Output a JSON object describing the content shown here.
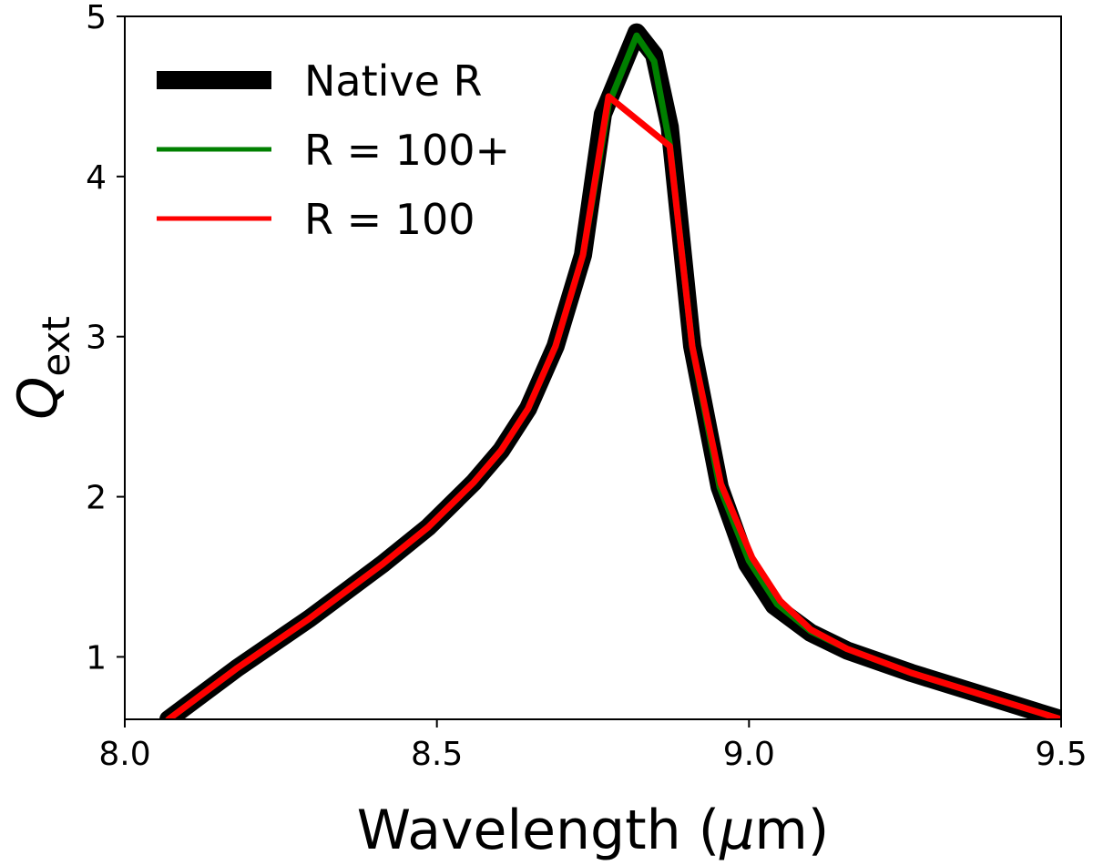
{
  "chart_data": {
    "type": "line",
    "title": "",
    "xlabel": "Wavelength (μm)",
    "xlabel_parts": {
      "prefix": "Wavelength (",
      "mu": "μ",
      "suffix": "m)"
    },
    "ylabel": "Q_ext",
    "ylabel_parts": {
      "main": "Q",
      "sub": "ext"
    },
    "xlim": [
      8.0,
      9.5
    ],
    "ylim": [
      0.61,
      5.0
    ],
    "xticks": [
      {
        "value": 8.0,
        "label": "8.0"
      },
      {
        "value": 8.5,
        "label": "8.5"
      },
      {
        "value": 9.0,
        "label": "9.0"
      },
      {
        "value": 9.5,
        "label": "9.5"
      }
    ],
    "yticks": [
      {
        "value": 1,
        "label": "1"
      },
      {
        "value": 2,
        "label": "2"
      },
      {
        "value": 3,
        "label": "3"
      },
      {
        "value": 4,
        "label": "4"
      },
      {
        "value": 5,
        "label": "5"
      }
    ],
    "grid": false,
    "legend_position": "top-left",
    "series": [
      {
        "name": "Native R",
        "color": "#000000",
        "width": "thick",
        "x": [
          8.07,
          8.18,
          8.296,
          8.413,
          8.486,
          8.559,
          8.603,
          8.646,
          8.69,
          8.734,
          8.766,
          8.82,
          8.848,
          8.873,
          8.909,
          8.953,
          8.997,
          9.04,
          9.099,
          9.157,
          9.26,
          9.376,
          9.5
        ],
        "y": [
          0.61,
          0.93,
          1.24,
          1.58,
          1.81,
          2.09,
          2.29,
          2.55,
          2.94,
          3.51,
          4.39,
          4.9,
          4.76,
          4.31,
          2.94,
          2.06,
          1.58,
          1.32,
          1.15,
          1.04,
          0.9,
          0.76,
          0.61
        ]
      },
      {
        "name": "R = 100+",
        "color": "#008000",
        "width": "thin",
        "x": [
          8.07,
          8.18,
          8.296,
          8.413,
          8.486,
          8.559,
          8.603,
          8.646,
          8.69,
          8.734,
          8.775,
          8.82,
          8.848,
          8.873,
          8.909,
          8.953,
          9.0,
          9.045,
          9.099,
          9.157,
          9.26,
          9.376,
          9.5
        ],
        "y": [
          0.61,
          0.93,
          1.24,
          1.58,
          1.81,
          2.09,
          2.29,
          2.55,
          2.94,
          3.51,
          4.45,
          4.88,
          4.72,
          4.2,
          2.94,
          2.06,
          1.6,
          1.33,
          1.16,
          1.05,
          0.9,
          0.76,
          0.61
        ]
      },
      {
        "name": "R = 100",
        "color": "#ff0000",
        "width": "thin",
        "x": [
          8.07,
          8.18,
          8.296,
          8.413,
          8.486,
          8.559,
          8.603,
          8.646,
          8.69,
          8.734,
          8.775,
          8.873,
          8.909,
          8.955,
          9.005,
          9.05,
          9.099,
          9.157,
          9.26,
          9.376,
          9.5
        ],
        "y": [
          0.61,
          0.93,
          1.24,
          1.58,
          1.81,
          2.09,
          2.29,
          2.55,
          2.94,
          3.51,
          4.5,
          4.19,
          2.94,
          2.08,
          1.62,
          1.35,
          1.17,
          1.05,
          0.9,
          0.76,
          0.61
        ]
      }
    ]
  }
}
